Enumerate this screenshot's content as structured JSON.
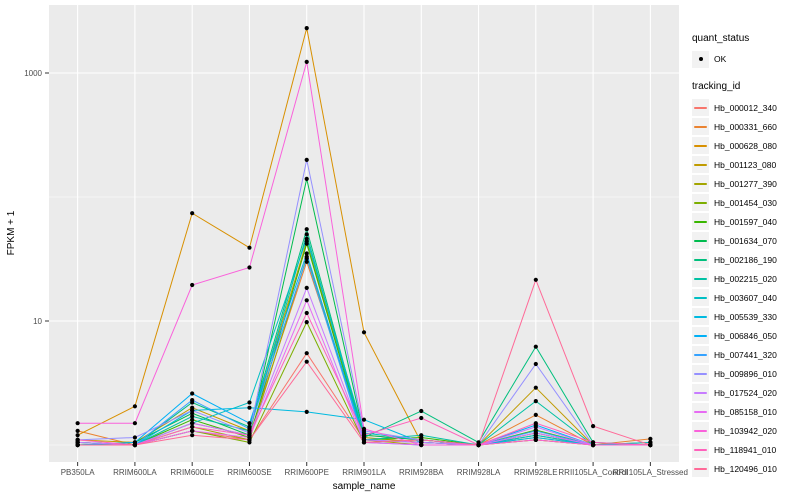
{
  "figure": {
    "background": "#FFFFFF",
    "panel_background": "#EBEBEB",
    "grid_color": "#FFFFFF",
    "tick_color": "#333333",
    "tick_label_color": "#4D4D4D",
    "axis_title_color": "#000000",
    "point_color": "#000000",
    "legend_key_fill": "#F2F2F2"
  },
  "legend": {
    "quant_status": {
      "title": "quant_status",
      "items": [
        {
          "label": "OK",
          "marker": "point-icon",
          "color": "#000000"
        }
      ]
    },
    "tracking_id": {
      "title": "tracking_id"
    }
  },
  "chart_data": {
    "type": "line",
    "title": "",
    "xlabel": "sample_name",
    "ylabel": "FPKM + 1",
    "y_scale": "log10",
    "y_ticks": [
      {
        "value": 10,
        "label": "10"
      },
      {
        "value": 1000,
        "label": "1000"
      }
    ],
    "y_minor_gridlines": [
      1,
      100
    ],
    "ylim_log": [
      0.73,
      3500
    ],
    "grid": true,
    "legend_position": "right",
    "point_shape": "solid-circle",
    "categories": [
      "PB350LA",
      "RRIM600LA",
      "RRIM600LE",
      "RRIM600SE",
      "RRIM600PE",
      "RRIM901LA",
      "RRIM928BA",
      "RRIM928LA",
      "RRIM928LE",
      "RRII105LA_Control",
      "RRII105LA_Stressed"
    ],
    "series": [
      {
        "name": "Hb_000012_340",
        "color": "#F8766D",
        "values": [
          1.05,
          1.0,
          1.3,
          1.1,
          5.5,
          1.1,
          1.05,
          1.0,
          1.15,
          1.0,
          1.0
        ]
      },
      {
        "name": "Hb_000331_660",
        "color": "#EA8331",
        "values": [
          1.3,
          1.0,
          1.5,
          1.2,
          30,
          1.2,
          1.1,
          1.0,
          1.75,
          1.0,
          1.12
        ]
      },
      {
        "name": "Hb_000628_080",
        "color": "#D89000",
        "values": [
          1.2,
          2.05,
          74,
          39,
          2300,
          8.1,
          1.05,
          1.0,
          1.1,
          1.0,
          1.05
        ]
      },
      {
        "name": "Hb_001123_080",
        "color": "#C09B00",
        "values": [
          1.1,
          1.05,
          2.0,
          1.3,
          44,
          1.15,
          1.05,
          1.0,
          2.9,
          1.0,
          1.0
        ]
      },
      {
        "name": "Hb_001277_390",
        "color": "#A3A500",
        "values": [
          1.0,
          1.0,
          1.4,
          1.1,
          33,
          1.1,
          1.0,
          1.0,
          1.1,
          1.0,
          1.0
        ]
      },
      {
        "name": "Hb_001454_030",
        "color": "#7CAE00",
        "values": [
          1.0,
          1.0,
          1.3,
          1.05,
          9.8,
          1.05,
          1.1,
          1.0,
          1.2,
          1.0,
          1.0
        ]
      },
      {
        "name": "Hb_001597_040",
        "color": "#39B600",
        "values": [
          1.05,
          1.0,
          1.6,
          1.15,
          42,
          1.1,
          1.15,
          1.0,
          1.32,
          1.0,
          1.0
        ]
      },
      {
        "name": "Hb_001634_070",
        "color": "#00BB4E",
        "values": [
          1.0,
          1.05,
          1.8,
          1.2,
          140,
          1.2,
          1.1,
          1.0,
          1.25,
          1.0,
          1.0
        ]
      },
      {
        "name": "Hb_002186_190",
        "color": "#00BF7D",
        "values": [
          1.05,
          1.0,
          2.2,
          1.4,
          55,
          1.15,
          1.88,
          1.05,
          6.2,
          1.05,
          1.0
        ]
      },
      {
        "name": "Hb_002215_020",
        "color": "#00C1A3",
        "values": [
          1.0,
          1.0,
          1.7,
          1.3,
          50,
          1.1,
          1.2,
          1.0,
          2.26,
          1.0,
          1.0
        ]
      },
      {
        "name": "Hb_003607_040",
        "color": "#00BFC4",
        "values": [
          1.0,
          1.0,
          1.5,
          2.2,
          46,
          1.25,
          1.1,
          1.0,
          1.2,
          1.0,
          1.05
        ]
      },
      {
        "name": "Hb_005539_330",
        "color": "#00BAE0",
        "values": [
          1.05,
          1.0,
          1.9,
          2.0,
          1.85,
          1.6,
          1.05,
          1.0,
          1.15,
          1.0,
          1.0
        ]
      },
      {
        "name": "Hb_006846_050",
        "color": "#00B0F6",
        "values": [
          1.0,
          1.05,
          2.6,
          1.5,
          35,
          1.1,
          1.05,
          1.0,
          1.45,
          1.0,
          1.0
        ]
      },
      {
        "name": "Hb_007441_320",
        "color": "#35A2FF",
        "values": [
          1.0,
          1.0,
          2.3,
          1.35,
          32,
          1.05,
          1.0,
          1.0,
          1.3,
          1.0,
          1.0
        ]
      },
      {
        "name": "Hb_009896_010",
        "color": "#9590FF",
        "values": [
          1.1,
          1.15,
          1.9,
          1.25,
          199,
          1.3,
          1.1,
          1.0,
          4.5,
          1.0,
          1.0
        ]
      },
      {
        "name": "Hb_017524_020",
        "color": "#C77CFF",
        "values": [
          1.05,
          1.0,
          1.5,
          1.2,
          18.5,
          1.1,
          1.05,
          1.0,
          1.4,
          1.0,
          1.0
        ]
      },
      {
        "name": "Hb_085158_010",
        "color": "#E76BF3",
        "values": [
          1.0,
          1.0,
          1.3,
          1.15,
          14.7,
          1.05,
          1.0,
          1.0,
          1.25,
          1.0,
          1.0
        ]
      },
      {
        "name": "Hb_103942_020",
        "color": "#FA62DB",
        "values": [
          1.5,
          1.5,
          19.5,
          27,
          1230,
          1.35,
          1.0,
          1.0,
          1.1,
          1.0,
          1.0
        ]
      },
      {
        "name": "Hb_118941_010",
        "color": "#FF62BC",
        "values": [
          1.1,
          1.0,
          1.4,
          1.2,
          11.6,
          1.2,
          1.65,
          1.0,
          1.5,
          1.05,
          1.0
        ]
      },
      {
        "name": "Hb_120496_010",
        "color": "#FF6A98",
        "values": [
          1.0,
          1.0,
          1.2,
          1.1,
          4.7,
          1.05,
          1.1,
          1.0,
          21.5,
          1.42,
          1.0
        ]
      }
    ]
  }
}
